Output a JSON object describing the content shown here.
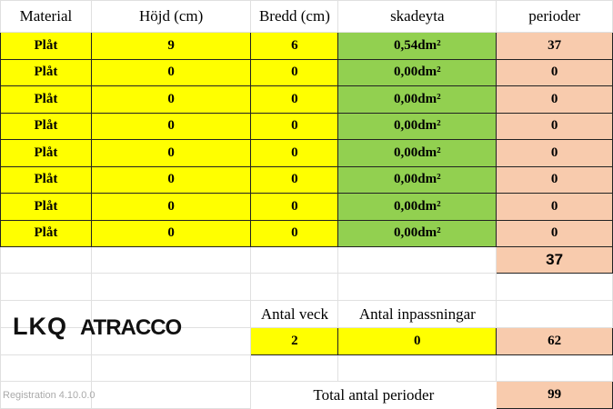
{
  "headers": [
    "Material",
    "Höjd (cm)",
    "Bredd (cm)",
    "skadeyta",
    "perioder"
  ],
  "rows": [
    [
      "Plåt",
      "9",
      "6",
      "0,54dm²",
      "37"
    ],
    [
      "Plåt",
      "0",
      "0",
      "0,00dm²",
      "0"
    ],
    [
      "Plåt",
      "0",
      "0",
      "0,00dm²",
      "0"
    ],
    [
      "Plåt",
      "0",
      "0",
      "0,00dm²",
      "0"
    ],
    [
      "Plåt",
      "0",
      "0",
      "0,00dm²",
      "0"
    ],
    [
      "Plåt",
      "0",
      "0",
      "0,00dm²",
      "0"
    ],
    [
      "Plåt",
      "0",
      "0",
      "0,00dm²",
      "0"
    ],
    [
      "Plåt",
      "0",
      "0",
      "0,00dm²",
      "0"
    ]
  ],
  "subtotal": "37",
  "antal_veck_label": "Antal veck",
  "antal_inpassningar_label": "Antal inpassningar",
  "antal_veck": "2",
  "antal_inpassningar": "0",
  "veck_perioder": "62",
  "total_label": "Total antal perioder",
  "total": "99",
  "logo": {
    "lkq": "LKQ",
    "atracco": "ATRACCO"
  },
  "registration": "Registration 4.10.0.0",
  "colors": {
    "input": "#ffff00",
    "area": "#92d050",
    "periods": "#f8cbad"
  }
}
